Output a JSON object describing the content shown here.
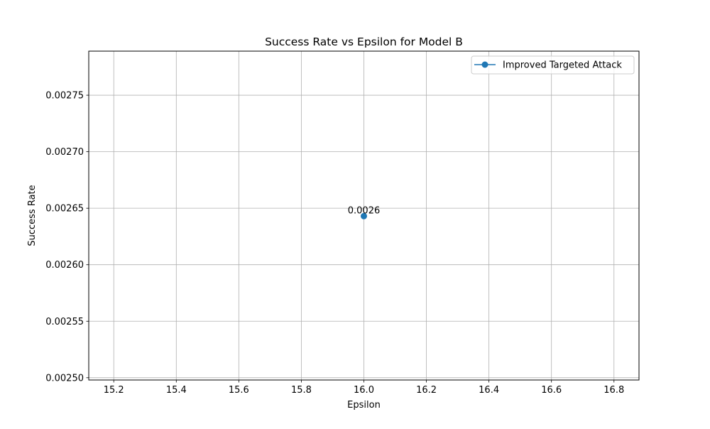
{
  "chart_data": {
    "type": "line",
    "title": "Success Rate vs Epsilon for Model B",
    "xlabel": "Epsilon",
    "ylabel": "Success Rate",
    "xlim": [
      15.12,
      16.88
    ],
    "ylim": [
      0.002498,
      0.002789
    ],
    "xticks": [
      15.2,
      15.4,
      15.6,
      15.8,
      16.0,
      16.2,
      16.4,
      16.6,
      16.8
    ],
    "xtick_labels": [
      "15.2",
      "15.4",
      "15.6",
      "15.8",
      "16.0",
      "16.2",
      "16.4",
      "16.6",
      "16.8"
    ],
    "yticks": [
      0.0025,
      0.00255,
      0.0026,
      0.00265,
      0.0027,
      0.00275
    ],
    "ytick_labels": [
      "0.00250",
      "0.00255",
      "0.00260",
      "0.00265",
      "0.00270",
      "0.00275"
    ],
    "grid": true,
    "legend_position": "top-right",
    "series": [
      {
        "name": "Improved Targeted Attack",
        "color": "#1f77b4",
        "marker": "circle",
        "points": [
          {
            "x": 16.0,
            "y": 0.002643,
            "label": "0.0026"
          }
        ]
      }
    ]
  }
}
